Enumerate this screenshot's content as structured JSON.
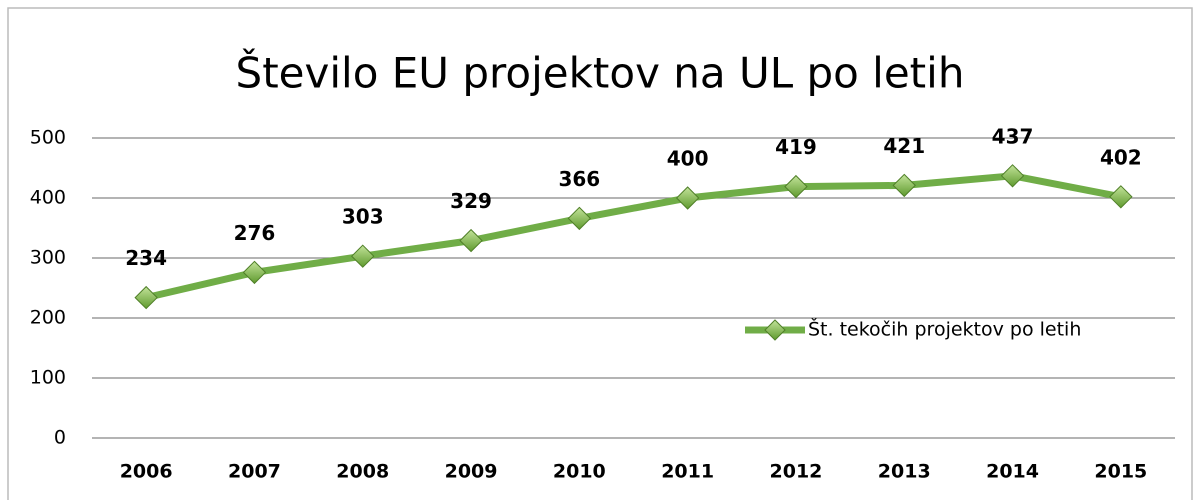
{
  "chart_data": {
    "type": "line",
    "title": "Število EU projektov na UL po letih",
    "categories": [
      "2006",
      "2007",
      "2008",
      "2009",
      "2010",
      "2011",
      "2012",
      "2013",
      "2014",
      "2015"
    ],
    "series": [
      {
        "name": "Št. tekočih projektov po letih",
        "color": "#70ad47",
        "values": [
          234,
          276,
          303,
          329,
          366,
          400,
          419,
          421,
          437,
          402
        ]
      }
    ],
    "ylim": [
      0,
      500
    ],
    "yticks": [
      0,
      100,
      200,
      300,
      400,
      500
    ],
    "grid": true,
    "legend": "right",
    "data_labels": true
  }
}
